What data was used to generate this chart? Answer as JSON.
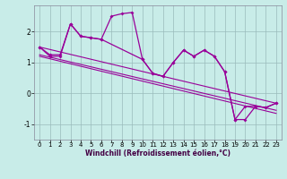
{
  "xlabel": "Windchill (Refroidissement éolien,°C)",
  "bg_color": "#c8ece8",
  "line_color": "#990099",
  "grid_color": "#99bbbb",
  "spine_color": "#888899",
  "xlim": [
    -0.5,
    23.5
  ],
  "ylim": [
    -1.5,
    2.85
  ],
  "xticks": [
    0,
    1,
    2,
    3,
    4,
    5,
    6,
    7,
    8,
    9,
    10,
    11,
    12,
    13,
    14,
    15,
    16,
    17,
    18,
    19,
    20,
    21,
    22,
    23
  ],
  "yticks": [
    -1,
    0,
    1,
    2
  ],
  "line1_x": [
    0,
    1,
    2,
    3,
    4,
    5,
    6,
    7,
    8,
    9,
    10,
    11,
    12,
    13,
    14,
    15,
    16,
    17,
    18,
    19,
    20,
    21,
    22,
    23
  ],
  "line1_y": [
    1.5,
    1.2,
    1.2,
    2.25,
    1.85,
    1.8,
    1.75,
    2.5,
    2.58,
    2.62,
    1.1,
    0.65,
    0.55,
    1.0,
    1.4,
    1.2,
    1.4,
    1.2,
    0.7,
    -0.85,
    -0.85,
    -0.42,
    -0.46,
    -0.32
  ],
  "line2_x": [
    0,
    1,
    2,
    3,
    4,
    5,
    6,
    10,
    11,
    12,
    13,
    14,
    15,
    16,
    17,
    18,
    19,
    20,
    21,
    22,
    23
  ],
  "line2_y": [
    1.5,
    1.25,
    1.25,
    2.25,
    1.85,
    1.8,
    1.75,
    1.1,
    0.65,
    0.55,
    1.0,
    1.4,
    1.2,
    1.4,
    1.2,
    0.7,
    -0.85,
    -0.42,
    -0.42,
    -0.46,
    -0.32
  ],
  "trend1_x": [
    0,
    23
  ],
  "trend1_y": [
    1.5,
    -0.32
  ],
  "trend2_x": [
    0,
    23
  ],
  "trend2_y": [
    1.25,
    -0.55
  ],
  "trend3_x": [
    0,
    23
  ],
  "trend3_y": [
    1.2,
    -0.65
  ]
}
